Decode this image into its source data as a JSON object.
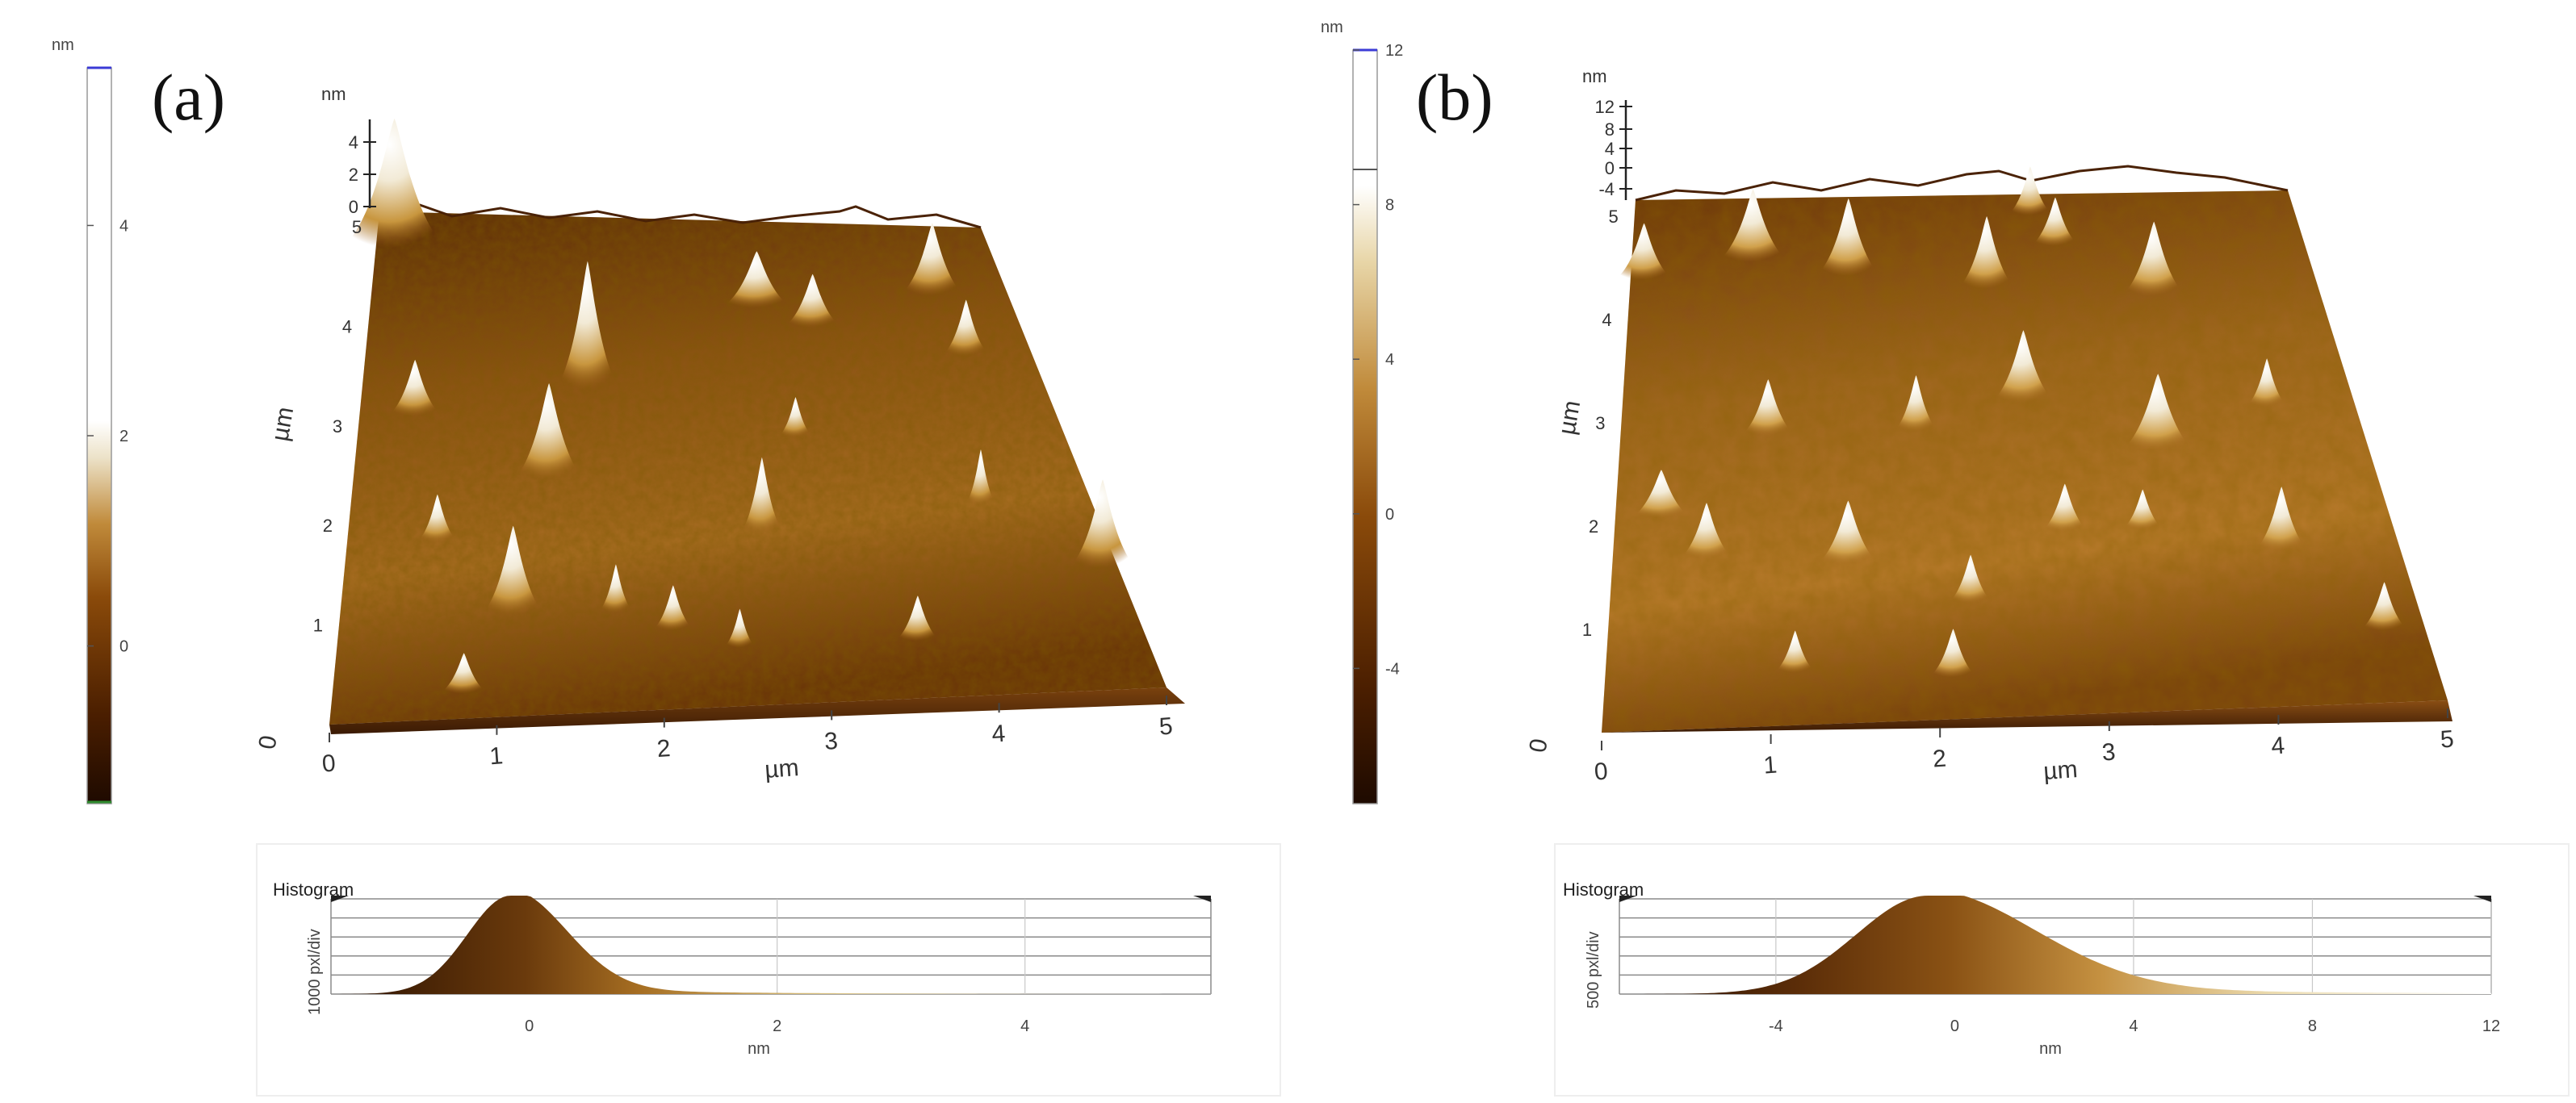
{
  "figure": {
    "panels": [
      {
        "id": "a",
        "label": "(a)",
        "colorbar": {
          "unit": "nm",
          "ticks": [
            "4",
            "2",
            "0"
          ],
          "tick_values": [
            4,
            2,
            0
          ],
          "range": [
            -1.5,
            5.5
          ]
        },
        "z_axis": {
          "unit": "nm",
          "ticks": [
            "4",
            "2",
            "0"
          ]
        },
        "y_axis": {
          "label": "µm",
          "ticks": [
            "1",
            "2",
            "3",
            "4",
            "5"
          ]
        },
        "x_axis": {
          "label": "µm",
          "ticks": [
            "0",
            "1",
            "2",
            "3",
            "4",
            "5"
          ]
        },
        "corner_zero": "0",
        "histogram": {
          "title": "Histogram",
          "ylabel": "1000 pxl/div",
          "xlabel": "nm",
          "ticks": [
            "0",
            "2",
            "4"
          ],
          "tick_values": [
            0,
            2,
            4
          ],
          "range": [
            -1.6,
            5.5
          ],
          "peak": -0.15,
          "spread_left": 0.35,
          "spread_right": 0.45
        }
      },
      {
        "id": "b",
        "label": "(b)",
        "colorbar": {
          "unit": "nm",
          "ticks": [
            "12",
            "8",
            "4",
            "0",
            "-4"
          ],
          "tick_values": [
            12,
            8,
            4,
            0,
            -4
          ],
          "range": [
            -7.5,
            12
          ]
        },
        "z_axis": {
          "unit": "nm",
          "ticks": [
            "12",
            "8",
            "4",
            "0",
            "-4"
          ]
        },
        "y_axis": {
          "label": "µm",
          "ticks": [
            "1",
            "2",
            "3",
            "4",
            "5"
          ]
        },
        "x_axis": {
          "label": "µm",
          "ticks": [
            "0",
            "1",
            "2",
            "3",
            "4",
            "5"
          ]
        },
        "corner_zero": "0",
        "histogram": {
          "title": "Histogram",
          "ylabel": "500 pxl/div",
          "xlabel": "nm",
          "ticks": [
            "-4",
            "0",
            "4",
            "8",
            "12"
          ],
          "tick_values": [
            -4,
            0,
            4,
            8,
            12
          ],
          "range": [
            -7.5,
            12
          ],
          "peak": -0.6,
          "spread_left": 1.6,
          "spread_right": 2.4
        }
      }
    ]
  }
}
